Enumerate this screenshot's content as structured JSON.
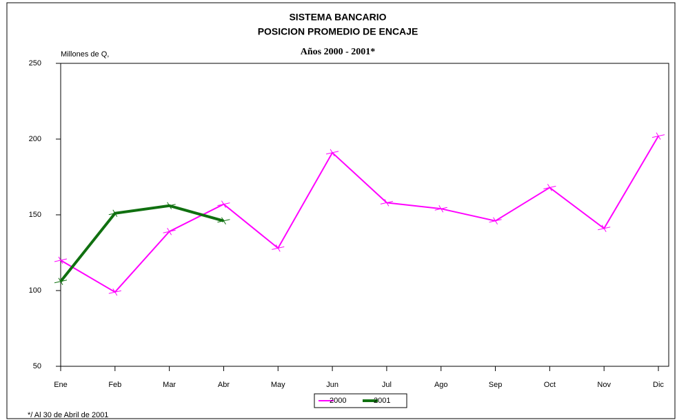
{
  "chart_data": {
    "type": "line",
    "title": "SISTEMA BANCARIO",
    "subtitle": "POSICION PROMEDIO DE ENCAJE",
    "period": "Años 2000 - 2001*",
    "y_label": "Millones de Q,",
    "footnote": "*/ Al 30 de Abril de 2001",
    "categories": [
      "Ene",
      "Feb",
      "Mar",
      "Abr",
      "May",
      "Jun",
      "Jul",
      "Ago",
      "Sep",
      "Oct",
      "Nov",
      "Dic"
    ],
    "series": [
      {
        "name": "2000",
        "color": "#ff00ff",
        "values": [
          120,
          99,
          139,
          157,
          128,
          191,
          158,
          154,
          146,
          168,
          141,
          202
        ]
      },
      {
        "name": "2001",
        "color": "#107010",
        "values": [
          106,
          151,
          156,
          146,
          null,
          null,
          null,
          null,
          null,
          null,
          null,
          null
        ]
      }
    ],
    "ylim": [
      50,
      250
    ],
    "yticks": [
      50,
      100,
      150,
      200,
      250
    ],
    "grid": false
  }
}
